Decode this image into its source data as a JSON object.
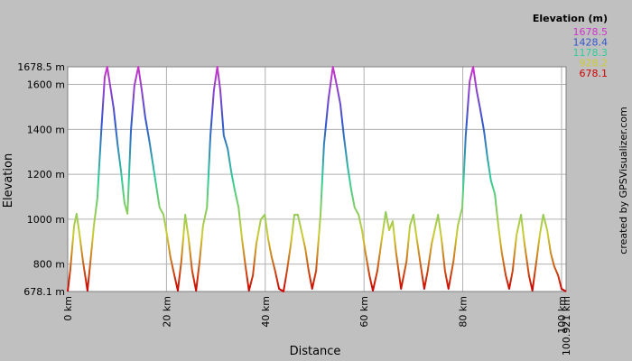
{
  "chart_data": {
    "type": "line",
    "x_label": "Distance",
    "y_label": "Elevation",
    "credit": "created by GPSVisualizer.com",
    "legend_title": "Elevation (m)",
    "color_scale": {
      "values": [
        1678.5,
        1428.4,
        1178.3,
        928.2,
        678.1
      ],
      "colors": [
        "#cc33cc",
        "#3355cc",
        "#33cc99",
        "#cccc33",
        "#cc0000"
      ]
    },
    "xlim": [
      0,
      100.921
    ],
    "ylim": [
      678.1,
      1678.5
    ],
    "xticks": [
      {
        "value": 0,
        "label": "0 km"
      },
      {
        "value": 20,
        "label": "20 km"
      },
      {
        "value": 40,
        "label": "40 km"
      },
      {
        "value": 60,
        "label": "60 km"
      },
      {
        "value": 80,
        "label": "80 km"
      },
      {
        "value": 100,
        "label": "100 km"
      },
      {
        "value": 100.921,
        "label": "100.921 km"
      }
    ],
    "yticks": [
      {
        "value": 678.1,
        "label": "678.1 m"
      },
      {
        "value": 800,
        "label": "800 m"
      },
      {
        "value": 1000,
        "label": "1000 m"
      },
      {
        "value": 1200,
        "label": "1200 m"
      },
      {
        "value": 1400,
        "label": "1400 m"
      },
      {
        "value": 1600,
        "label": "1600 m"
      },
      {
        "value": 1678.5,
        "label": "1678.5 m"
      }
    ],
    "grid": true,
    "x": [
      0,
      0.5,
      1.3,
      1.8,
      2.4,
      3.1,
      4.0,
      4.6,
      5.3,
      6.0,
      6.8,
      7.5,
      8.0,
      8.6,
      9.3,
      10.1,
      10.8,
      11.5,
      12.1,
      12.8,
      13.5,
      14.3,
      15.0,
      15.7,
      16.5,
      17.2,
      17.9,
      18.6,
      19.4,
      20.1,
      20.8,
      21.6,
      22.3,
      23.0,
      23.8,
      24.5,
      25.2,
      26.0,
      26.7,
      27.4,
      28.2,
      28.9,
      29.6,
      30.3,
      30.9,
      31.6,
      32.4,
      33.1,
      33.8,
      34.6,
      35.3,
      36.0,
      36.7,
      37.5,
      38.2,
      39.1,
      39.9,
      40.6,
      41.3,
      42.0,
      42.8,
      43.7,
      44.4,
      45.2,
      45.9,
      46.6,
      47.3,
      48.1,
      48.8,
      49.5,
      50.3,
      51.2,
      51.9,
      52.8,
      53.7,
      54.5,
      55.2,
      55.9,
      56.7,
      57.4,
      58.1,
      58.9,
      59.6,
      60.3,
      61.1,
      61.8,
      62.7,
      63.6,
      64.4,
      65.1,
      65.8,
      66.5,
      67.5,
      68.6,
      69.3,
      70.0,
      70.7,
      71.5,
      72.2,
      72.9,
      73.7,
      75.0,
      75.7,
      76.4,
      77.1,
      78.1,
      79.0,
      79.9,
      80.6,
      81.4,
      82.1,
      82.8,
      83.5,
      84.3,
      85.0,
      85.7,
      86.5,
      87.2,
      87.9,
      88.7,
      89.4,
      90.1,
      90.9,
      91.8,
      92.5,
      93.4,
      94.1,
      94.9,
      95.6,
      96.3,
      97.1,
      97.8,
      98.5,
      99.3,
      100.0,
      100.921
    ],
    "series": [
      {
        "name": "Elevation",
        "values": [
          678.1,
          770,
          971,
          1024,
          931,
          811,
          682,
          811,
          971,
          1092,
          1393,
          1634,
          1678.5,
          1594,
          1494,
          1333,
          1213,
          1072,
          1024,
          1393,
          1594,
          1678.5,
          1574,
          1454,
          1353,
          1253,
          1152,
          1052,
          1020,
          931,
          831,
          750,
          682,
          811,
          1020,
          911,
          770,
          682,
          811,
          971,
          1052,
          1373,
          1574,
          1678.5,
          1574,
          1373,
          1313,
          1213,
          1132,
          1052,
          911,
          791,
          682,
          750,
          891,
          999,
          1020,
          911,
          831,
          770,
          690,
          678.1,
          770,
          891,
          1020,
          1020,
          951,
          871,
          770,
          690,
          770,
          1020,
          1333,
          1534,
          1678.5,
          1594,
          1514,
          1373,
          1233,
          1132,
          1052,
          1020,
          951,
          851,
          750,
          682,
          770,
          911,
          1032,
          951,
          991,
          851,
          690,
          811,
          971,
          1020,
          911,
          791,
          690,
          770,
          891,
          1020,
          911,
          770,
          690,
          811,
          971,
          1052,
          1373,
          1614,
          1678.5,
          1574,
          1494,
          1393,
          1273,
          1172,
          1112,
          971,
          851,
          750,
          690,
          770,
          931,
          1020,
          891,
          750,
          682,
          811,
          931,
          1020,
          951,
          851,
          791,
          750,
          690,
          678.1
        ]
      }
    ]
  }
}
